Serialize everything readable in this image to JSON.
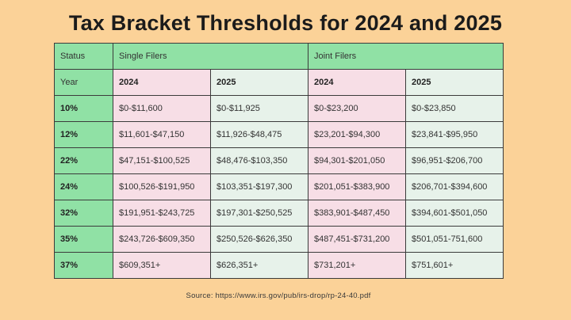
{
  "page": {
    "title": "Tax Bracket Thresholds for 2024 and 2025",
    "source": "Source:  https://www.irs.gov/pub/irs-drop/rp-24-40.pdf"
  },
  "colors": {
    "background": "#FBD298",
    "header_green": "#90E1A5",
    "column_pink": "#F7DEE6",
    "column_mint": "#E7F2EA",
    "border": "#3B3B3B",
    "title_text": "#1B1B1B",
    "cell_text": "#333333"
  },
  "table": {
    "group_headers": {
      "status": "Status",
      "single_filers": "Single Filers",
      "joint_filers": "Joint Filers"
    },
    "year_row": {
      "label": "Year",
      "years": [
        "2024",
        "2025",
        "2024",
        "2025"
      ]
    },
    "rows": [
      {
        "rate": "10%",
        "values": [
          "$0-$11,600",
          "$0-$11,925",
          "$0-$23,200",
          "$0-$23,850"
        ]
      },
      {
        "rate": "12%",
        "values": [
          "$11,601-$47,150",
          "$11,926-$48,475",
          "$23,201-$94,300",
          "$23,841-$95,950"
        ]
      },
      {
        "rate": "22%",
        "values": [
          "$47,151-$100,525",
          "$48,476-$103,350",
          "$94,301-$201,050",
          "$96,951-$206,700"
        ]
      },
      {
        "rate": "24%",
        "values": [
          "$100,526-$191,950",
          "$103,351-$197,300",
          "$201,051-$383,900",
          "$206,701-$394,600"
        ]
      },
      {
        "rate": "32%",
        "values": [
          "$191,951-$243,725",
          "$197,301-$250,525",
          "$383,901-$487,450",
          "$394,601-$501,050"
        ]
      },
      {
        "rate": "35%",
        "values": [
          "$243,726-$609,350",
          "$250,526-$626,350",
          "$487,451-$731,200",
          "$501,051-751,600"
        ]
      },
      {
        "rate": "37%",
        "values": [
          "$609,351+",
          "$626,351+",
          "$731,201+",
          "$751,601+"
        ]
      }
    ]
  },
  "chart_data": {
    "type": "table",
    "title": "Tax Bracket Thresholds for 2024 and 2025",
    "columns": [
      "Status / Tax Rate",
      "Single Filers 2024",
      "Single Filers 2025",
      "Joint Filers 2024",
      "Joint Filers 2025"
    ],
    "rows": [
      [
        "10%",
        "$0-$11,600",
        "$0-$11,925",
        "$0-$23,200",
        "$0-$23,850"
      ],
      [
        "12%",
        "$11,601-$47,150",
        "$11,926-$48,475",
        "$23,201-$94,300",
        "$23,841-$95,950"
      ],
      [
        "22%",
        "$47,151-$100,525",
        "$48,476-$103,350",
        "$94,301-$201,050",
        "$96,951-$206,700"
      ],
      [
        "24%",
        "$100,526-$191,950",
        "$103,351-$197,300",
        "$201,051-$383,900",
        "$206,701-$394,600"
      ],
      [
        "32%",
        "$191,951-$243,725",
        "$197,301-$250,525",
        "$383,901-$487,450",
        "$394,601-$501,050"
      ],
      [
        "35%",
        "$243,726-$609,350",
        "$250,526-$626,350",
        "$487,451-$731,200",
        "$501,051-751,600"
      ],
      [
        "37%",
        "$609,351+",
        "$626,351+",
        "$731,201+",
        "$751,601+"
      ]
    ],
    "source": "https://www.irs.gov/pub/irs-drop/rp-24-40.pdf"
  }
}
